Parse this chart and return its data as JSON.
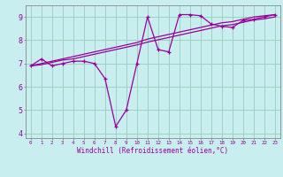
{
  "xlabel": "Windchill (Refroidissement éolien,°C)",
  "hours": [
    0,
    1,
    2,
    3,
    4,
    5,
    6,
    7,
    8,
    9,
    10,
    11,
    12,
    13,
    14,
    15,
    16,
    17,
    18,
    19,
    20,
    21,
    22,
    23
  ],
  "windchill": [
    6.9,
    7.2,
    6.9,
    7.0,
    7.1,
    7.1,
    7.0,
    6.35,
    4.3,
    5.0,
    7.0,
    9.0,
    7.6,
    7.5,
    9.1,
    9.1,
    9.05,
    8.7,
    8.6,
    8.55,
    8.85,
    8.9,
    9.0,
    9.1
  ],
  "temp": [
    6.9,
    7.0,
    7.1,
    7.2,
    7.3,
    7.4,
    7.5,
    7.6,
    7.7,
    7.8,
    7.9,
    8.05,
    8.15,
    8.25,
    8.35,
    8.45,
    8.55,
    8.65,
    8.75,
    8.8,
    8.9,
    9.0,
    9.05,
    9.1
  ],
  "temp2": [
    6.9,
    6.95,
    7.05,
    7.15,
    7.2,
    7.3,
    7.4,
    7.5,
    7.6,
    7.7,
    7.8,
    7.92,
    8.02,
    8.12,
    8.22,
    8.32,
    8.42,
    8.52,
    8.62,
    8.67,
    8.77,
    8.87,
    8.92,
    9.0
  ],
  "line_color": "#990099",
  "bg_color": "#c8eef0",
  "grid_color": "#99ccbb",
  "ylim": [
    3.8,
    9.5
  ],
  "xlim": [
    -0.5,
    23.5
  ],
  "yticks": [
    4,
    5,
    6,
    7,
    8,
    9
  ],
  "xticks": [
    0,
    1,
    2,
    3,
    4,
    5,
    6,
    7,
    8,
    9,
    10,
    11,
    12,
    13,
    14,
    15,
    16,
    17,
    18,
    19,
    20,
    21,
    22,
    23
  ],
  "xlabel_fontsize": 5.5,
  "ytick_fontsize": 6.0,
  "xtick_fontsize": 4.2
}
